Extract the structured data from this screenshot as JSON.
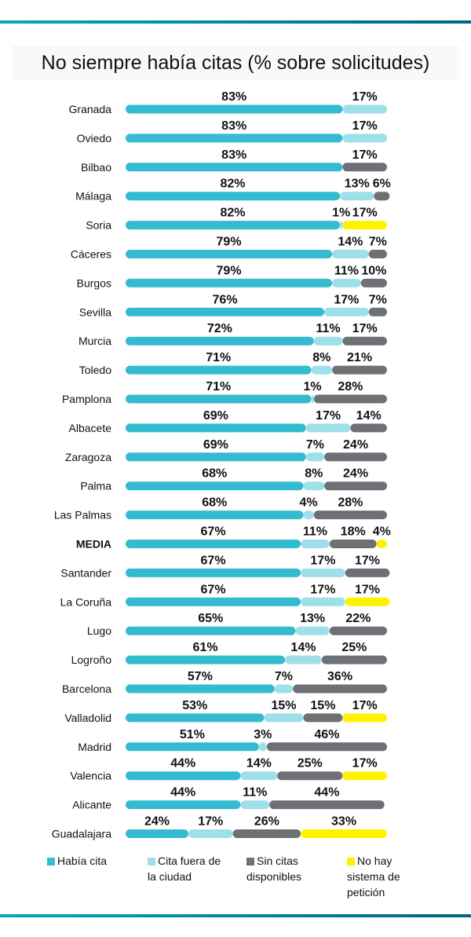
{
  "chart_data": {
    "type": "bar",
    "orientation": "horizontal",
    "stacked": true,
    "title": "No siempre había citas (% sobre solicitudes)",
    "xlim": [
      0,
      100
    ],
    "grid": false,
    "legend_placement": "bottom",
    "series": [
      {
        "key": "habia",
        "name": "Había cita",
        "color": "#33bccf"
      },
      {
        "key": "fuera",
        "name": "Cita fuera de la ciudad",
        "color": "#9fdfe9"
      },
      {
        "key": "sin",
        "name": "Sin citas disponibles",
        "color": "#6d7075"
      },
      {
        "key": "nohay",
        "name": "No hay sistema de petición",
        "color": "#fff200"
      }
    ],
    "rows": [
      {
        "label": "Granada",
        "values": {
          "habia": 83,
          "fuera": 17
        }
      },
      {
        "label": "Oviedo",
        "values": {
          "habia": 83,
          "fuera": 17
        }
      },
      {
        "label": "Bilbao",
        "values": {
          "habia": 83,
          "sin": 17
        }
      },
      {
        "label": "Málaga",
        "values": {
          "habia": 82,
          "fuera": 13,
          "sin": 6
        }
      },
      {
        "label": "Soria",
        "values": {
          "habia": 82,
          "fuera": 1,
          "nohay": 17
        }
      },
      {
        "label": "Cáceres",
        "values": {
          "habia": 79,
          "fuera": 14,
          "sin": 7
        }
      },
      {
        "label": "Burgos",
        "values": {
          "habia": 79,
          "fuera": 11,
          "sin": 10
        }
      },
      {
        "label": "Sevilla",
        "values": {
          "habia": 76,
          "fuera": 17,
          "sin": 7
        }
      },
      {
        "label": "Murcia",
        "values": {
          "habia": 72,
          "fuera": 11,
          "sin": 17
        }
      },
      {
        "label": "Toledo",
        "values": {
          "habia": 71,
          "fuera": 8,
          "sin": 21
        }
      },
      {
        "label": "Pamplona",
        "values": {
          "habia": 71,
          "fuera": 1,
          "sin": 28
        }
      },
      {
        "label": "Albacete",
        "values": {
          "habia": 69,
          "fuera": 17,
          "sin": 14
        }
      },
      {
        "label": "Zaragoza",
        "values": {
          "habia": 69,
          "fuera": 7,
          "sin": 24
        }
      },
      {
        "label": "Palma",
        "values": {
          "habia": 68,
          "fuera": 8,
          "sin": 24
        }
      },
      {
        "label": "Las Palmas",
        "values": {
          "habia": 68,
          "fuera": 4,
          "sin": 28
        }
      },
      {
        "label": "MEDIA",
        "bold": true,
        "values": {
          "habia": 67,
          "fuera": 11,
          "sin": 18,
          "nohay": 4
        }
      },
      {
        "label": "Santander",
        "values": {
          "habia": 67,
          "fuera": 17,
          "sin": 17
        }
      },
      {
        "label": "La Coruña",
        "values": {
          "habia": 67,
          "fuera": 17,
          "nohay": 17
        }
      },
      {
        "label": "Lugo",
        "values": {
          "habia": 65,
          "fuera": 13,
          "sin": 22
        }
      },
      {
        "label": "Logroño",
        "values": {
          "habia": 61,
          "fuera": 14,
          "sin": 25
        }
      },
      {
        "label": "Barcelona",
        "values": {
          "habia": 57,
          "fuera": 7,
          "sin": 36
        }
      },
      {
        "label": "Valladolid",
        "values": {
          "habia": 53,
          "fuera": 15,
          "sin": 15,
          "nohay": 17
        }
      },
      {
        "label": "Madrid",
        "values": {
          "habia": 51,
          "fuera": 3,
          "sin": 46
        }
      },
      {
        "label": "Valencia",
        "values": {
          "habia": 44,
          "fuera": 14,
          "sin": 25,
          "nohay": 17
        }
      },
      {
        "label": "Alicante",
        "values": {
          "habia": 44,
          "fuera": 11,
          "sin": 44
        }
      },
      {
        "label": "Guadalajara",
        "values": {
          "habia": 24,
          "fuera": 17,
          "sin": 26,
          "nohay": 33
        }
      }
    ]
  },
  "legend": {
    "habia": "Había cita",
    "fuera_1": "Cita fuera de",
    "fuera_2": "la ciudad",
    "sin_1": "Sin citas",
    "sin_2": "disponibles",
    "nohay_1": "No hay",
    "nohay_2": "sistema de",
    "nohay_3": "petición"
  }
}
